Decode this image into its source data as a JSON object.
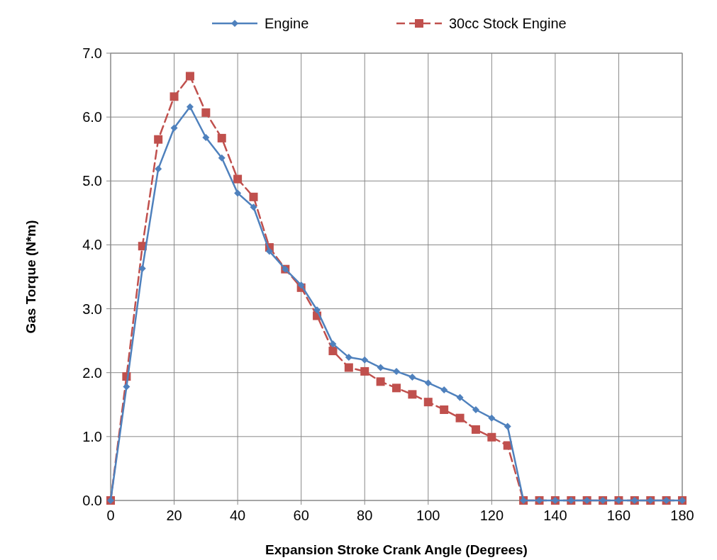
{
  "chart_data": {
    "type": "line",
    "xlabel": "Expansion Stroke Crank Angle (Degrees)",
    "ylabel": "Gas Torque (N*m)",
    "x": [
      0,
      5,
      10,
      15,
      20,
      25,
      30,
      35,
      40,
      45,
      50,
      55,
      60,
      65,
      70,
      75,
      80,
      85,
      90,
      95,
      100,
      105,
      110,
      115,
      120,
      125,
      130,
      135,
      140,
      145,
      150,
      155,
      160,
      165,
      170,
      175,
      180
    ],
    "xlim": [
      0,
      180
    ],
    "xticks": [
      0,
      20,
      40,
      60,
      80,
      100,
      120,
      140,
      160,
      180
    ],
    "ylim": [
      0,
      7
    ],
    "yticks": [
      {
        "value": 0,
        "label": "0.0"
      },
      {
        "value": 1,
        "label": "1.0"
      },
      {
        "value": 2,
        "label": "2.0"
      },
      {
        "value": 3,
        "label": "3.0"
      },
      {
        "value": 4,
        "label": "4.0"
      },
      {
        "value": 5,
        "label": "5.0"
      },
      {
        "value": 6,
        "label": "6.0"
      },
      {
        "value": 7,
        "label": "7.0"
      }
    ],
    "grid": true,
    "legend": "top",
    "series": [
      {
        "name": "Engine",
        "color": "#4f81bd",
        "marker": "diamond",
        "line_style": "solid",
        "values": [
          0,
          1.78,
          3.63,
          5.19,
          5.83,
          6.16,
          5.68,
          5.36,
          4.81,
          4.59,
          3.9,
          3.62,
          3.37,
          2.98,
          2.45,
          2.24,
          2.2,
          2.08,
          2.02,
          1.93,
          1.84,
          1.73,
          1.61,
          1.42,
          1.29,
          1.16,
          0,
          0,
          0,
          0,
          0,
          0,
          0,
          0,
          0,
          0,
          0
        ]
      },
      {
        "name": "30cc Stock Engine",
        "color": "#c0504d",
        "marker": "square",
        "line_style": "dashed",
        "values": [
          0,
          1.94,
          3.98,
          5.65,
          6.32,
          6.64,
          6.07,
          5.67,
          5.03,
          4.75,
          3.96,
          3.62,
          3.33,
          2.89,
          2.34,
          2.08,
          2.02,
          1.86,
          1.76,
          1.66,
          1.54,
          1.42,
          1.29,
          1.11,
          0.99,
          0.86,
          0,
          0,
          0,
          0,
          0,
          0,
          0,
          0,
          0,
          0,
          0
        ]
      }
    ]
  }
}
